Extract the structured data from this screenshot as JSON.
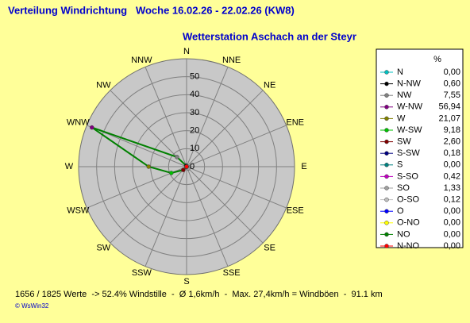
{
  "chart_data": {
    "type": "radar",
    "title": "Verteilung Windrichtung   Woche 16.02.26 - 22.02.26 (KW8)",
    "subtitle": "Wetterstation Aschach an der Steyr",
    "categories": [
      "N",
      "NNE",
      "NE",
      "ENE",
      "E",
      "ESE",
      "SE",
      "SSE",
      "S",
      "SSW",
      "SW",
      "WSW",
      "W",
      "WNW",
      "NW",
      "NNW"
    ],
    "rlim": [
      0,
      60
    ],
    "rticks": [
      0,
      10,
      20,
      30,
      40,
      50
    ],
    "line_color": "#008000",
    "legend_title": "%",
    "legend": [
      {
        "name": "N",
        "color": "#00c0c0",
        "value": 0.0,
        "value_label": "0,00"
      },
      {
        "name": "N-NW",
        "color": "#000000",
        "value": 0.6,
        "value_label": "0,60"
      },
      {
        "name": "NW",
        "color": "#808080",
        "value": 7.55,
        "value_label": "7,55"
      },
      {
        "name": "W-NW",
        "color": "#800080",
        "value": 56.94,
        "value_label": "56,94"
      },
      {
        "name": "W",
        "color": "#808000",
        "value": 21.07,
        "value_label": "21,07"
      },
      {
        "name": "W-SW",
        "color": "#00c000",
        "value": 9.18,
        "value_label": "9,18"
      },
      {
        "name": "SW",
        "color": "#800000",
        "value": 2.6,
        "value_label": "2,60"
      },
      {
        "name": "S-SW",
        "color": "#000080",
        "value": 0.18,
        "value_label": "0,18"
      },
      {
        "name": "S",
        "color": "#008080",
        "value": 0.0,
        "value_label": "0,00"
      },
      {
        "name": "S-SO",
        "color": "#c000c0",
        "value": 0.42,
        "value_label": "0,42"
      },
      {
        "name": "SO",
        "color": "#a0a0a0",
        "value": 1.33,
        "value_label": "1,33"
      },
      {
        "name": "O-SO",
        "color": "#c0c0c0",
        "value": 0.12,
        "value_label": "0,12"
      },
      {
        "name": "O",
        "color": "#0000ff",
        "value": 0.0,
        "value_label": "0,00"
      },
      {
        "name": "O-NO",
        "color": "#ffff00",
        "value": 0.0,
        "value_label": "0,00"
      },
      {
        "name": "NO",
        "color": "#008000",
        "value": 0.0,
        "value_label": "0,00"
      },
      {
        "name": "N-NO",
        "color": "#ff0000",
        "value": 0.0,
        "value_label": "0,00"
      }
    ],
    "footer": "1656 / 1825 Werte  -> 52.4% Windstille  -  Ø 1,6km/h  -  Max. 27,4km/h = Windböen  -  91.1 km",
    "credit": "© WsWin32"
  }
}
